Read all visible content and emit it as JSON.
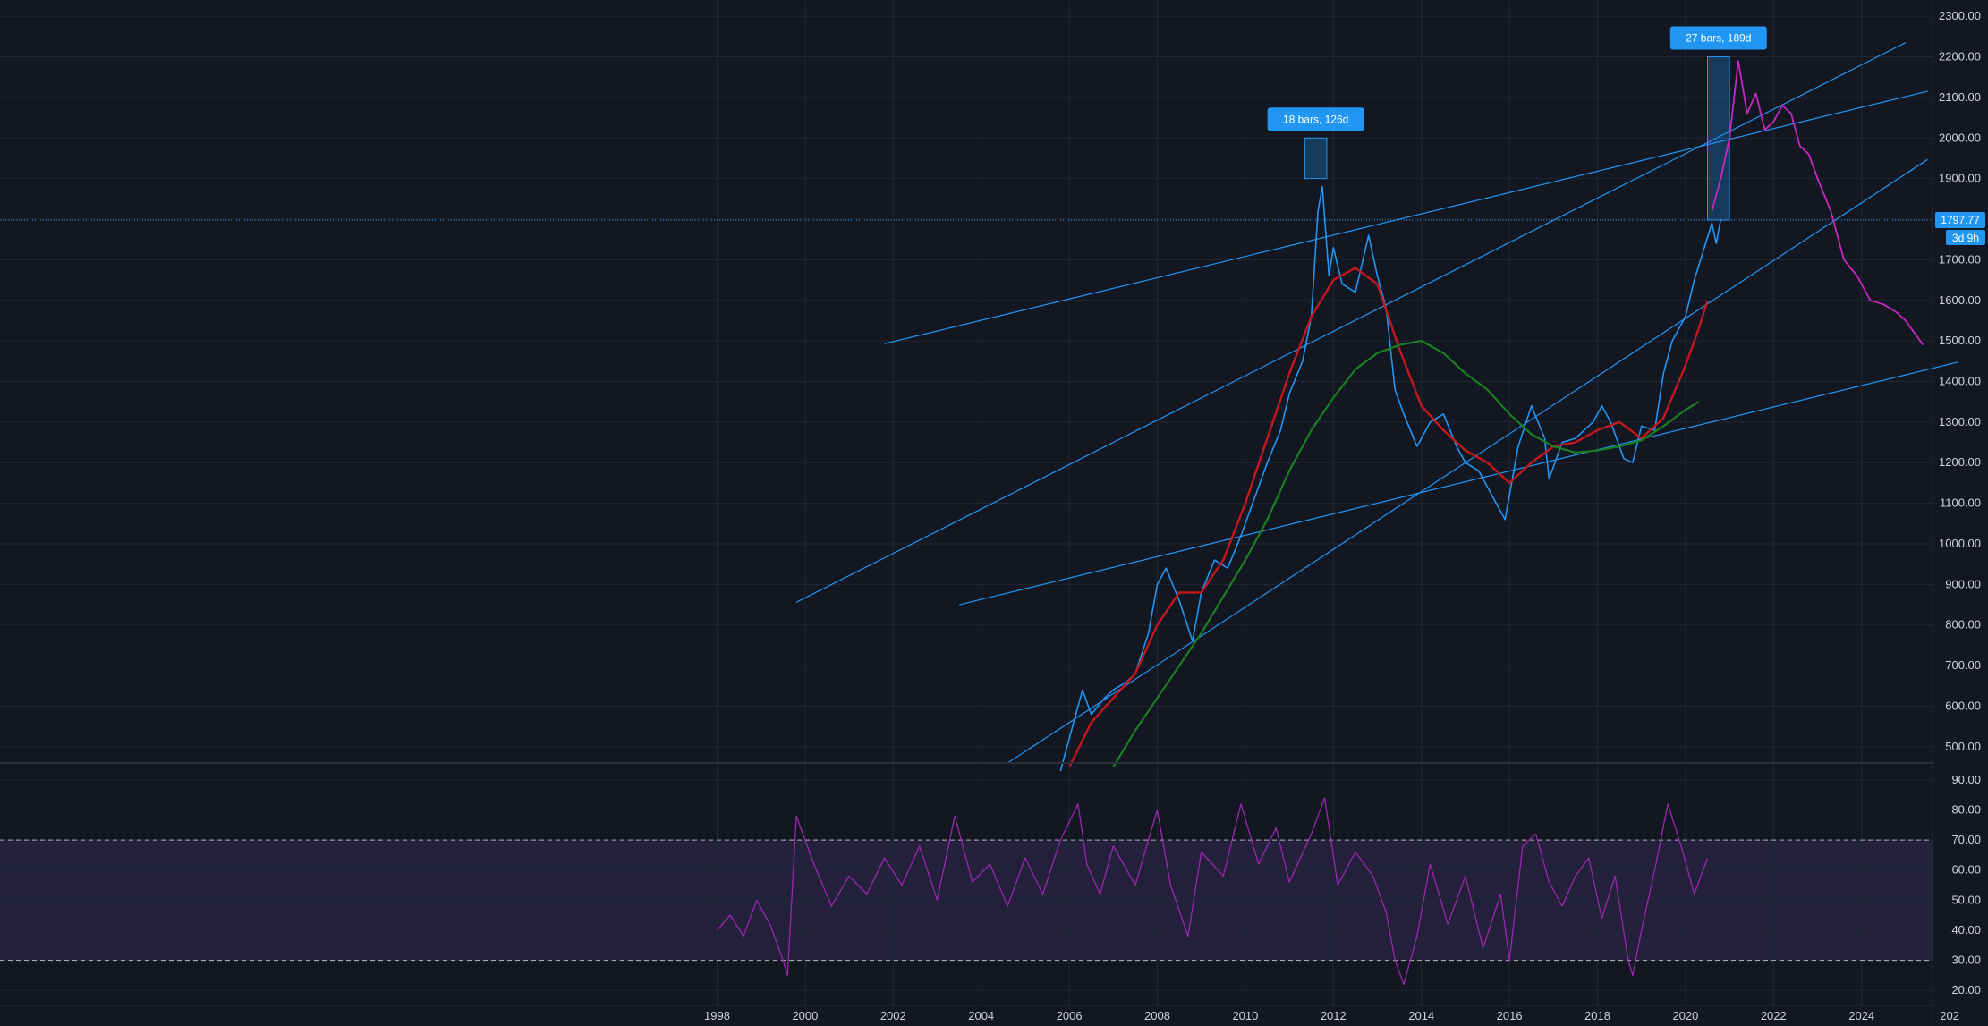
{
  "chart_data": [
    {
      "type": "line",
      "panel": "price",
      "x_axis": {
        "min_year": 1998,
        "max_year": 2026,
        "tick_labels": [
          "1998",
          "2000",
          "2002",
          "2004",
          "2006",
          "2008",
          "2010",
          "2012",
          "2014",
          "2016",
          "2018",
          "2020",
          "2022",
          "2024",
          "202"
        ]
      },
      "y_axis": {
        "min": 460,
        "max": 2340,
        "tick_labels": [
          "500.00",
          "600.00",
          "700.00",
          "800.00",
          "900.00",
          "1000.00",
          "1100.00",
          "1200.00",
          "1300.00",
          "1400.00",
          "1500.00",
          "1600.00",
          "1700.00",
          "1800.00",
          "1900.00",
          "2000.00",
          "2100.00",
          "2200.00",
          "2300.00"
        ],
        "grid": true
      },
      "price_line": {
        "value": 1797.77,
        "label": "1797.77",
        "countdown": "3d 9h",
        "color": "#2196f3"
      },
      "series": [
        {
          "color": "#2196f3",
          "points": [
            [
              2005.8,
              440
            ],
            [
              2006.0,
              520
            ],
            [
              2006.3,
              640
            ],
            [
              2006.5,
              580
            ],
            [
              2006.8,
              620
            ],
            [
              2007.0,
              640
            ],
            [
              2007.3,
              660
            ],
            [
              2007.5,
              680
            ],
            [
              2007.8,
              780
            ],
            [
              2008.0,
              900
            ],
            [
              2008.2,
              940
            ],
            [
              2008.5,
              860
            ],
            [
              2008.8,
              760
            ],
            [
              2009.0,
              880
            ],
            [
              2009.3,
              960
            ],
            [
              2009.6,
              940
            ],
            [
              2009.9,
              1020
            ],
            [
              2010.2,
              1110
            ],
            [
              2010.5,
              1200
            ],
            [
              2010.8,
              1280
            ],
            [
              2011.0,
              1370
            ],
            [
              2011.3,
              1450
            ],
            [
              2011.5,
              1560
            ],
            [
              2011.65,
              1820
            ],
            [
              2011.75,
              1880
            ],
            [
              2011.9,
              1660
            ],
            [
              2012.0,
              1730
            ],
            [
              2012.2,
              1640
            ],
            [
              2012.5,
              1620
            ],
            [
              2012.8,
              1760
            ],
            [
              2013.0,
              1660
            ],
            [
              2013.2,
              1580
            ],
            [
              2013.4,
              1380
            ],
            [
              2013.6,
              1320
            ],
            [
              2013.9,
              1240
            ],
            [
              2014.2,
              1300
            ],
            [
              2014.5,
              1320
            ],
            [
              2014.8,
              1240
            ],
            [
              2015.0,
              1200
            ],
            [
              2015.3,
              1180
            ],
            [
              2015.6,
              1120
            ],
            [
              2015.9,
              1060
            ],
            [
              2016.2,
              1240
            ],
            [
              2016.5,
              1340
            ],
            [
              2016.8,
              1260
            ],
            [
              2016.9,
              1160
            ],
            [
              2017.2,
              1250
            ],
            [
              2017.5,
              1260
            ],
            [
              2017.7,
              1280
            ],
            [
              2017.9,
              1300
            ],
            [
              2018.1,
              1340
            ],
            [
              2018.3,
              1300
            ],
            [
              2018.6,
              1210
            ],
            [
              2018.8,
              1200
            ],
            [
              2019.0,
              1290
            ],
            [
              2019.3,
              1280
            ],
            [
              2019.5,
              1420
            ],
            [
              2019.7,
              1500
            ],
            [
              2020.0,
              1560
            ],
            [
              2020.2,
              1650
            ],
            [
              2020.4,
              1720
            ],
            [
              2020.6,
              1790
            ],
            [
              2020.7,
              1740
            ],
            [
              2020.8,
              1800
            ]
          ]
        },
        {
          "color": "#c2181e",
          "points": [
            [
              2006.0,
              450
            ],
            [
              2006.5,
              560
            ],
            [
              2007.0,
              620
            ],
            [
              2007.5,
              680
            ],
            [
              2008.0,
              800
            ],
            [
              2008.5,
              880
            ],
            [
              2009.0,
              880
            ],
            [
              2009.5,
              960
            ],
            [
              2010.0,
              1100
            ],
            [
              2010.5,
              1260
            ],
            [
              2011.0,
              1420
            ],
            [
              2011.5,
              1560
            ],
            [
              2012.0,
              1650
            ],
            [
              2012.5,
              1680
            ],
            [
              2013.0,
              1640
            ],
            [
              2013.5,
              1480
            ],
            [
              2014.0,
              1340
            ],
            [
              2014.5,
              1280
            ],
            [
              2015.0,
              1230
            ],
            [
              2015.5,
              1200
            ],
            [
              2016.0,
              1150
            ],
            [
              2016.5,
              1200
            ],
            [
              2017.0,
              1240
            ],
            [
              2017.5,
              1250
            ],
            [
              2018.0,
              1280
            ],
            [
              2018.5,
              1300
            ],
            [
              2019.0,
              1260
            ],
            [
              2019.5,
              1310
            ],
            [
              2020.0,
              1440
            ],
            [
              2020.3,
              1530
            ],
            [
              2020.5,
              1600
            ]
          ]
        },
        {
          "color": "#1b7e20",
          "points": [
            [
              2007.0,
              450
            ],
            [
              2007.5,
              540
            ],
            [
              2008.0,
              620
            ],
            [
              2008.5,
              700
            ],
            [
              2009.0,
              780
            ],
            [
              2009.5,
              870
            ],
            [
              2010.0,
              960
            ],
            [
              2010.5,
              1060
            ],
            [
              2011.0,
              1180
            ],
            [
              2011.5,
              1280
            ],
            [
              2012.0,
              1360
            ],
            [
              2012.5,
              1430
            ],
            [
              2013.0,
              1470
            ],
            [
              2013.5,
              1490
            ],
            [
              2014.0,
              1500
            ],
            [
              2014.5,
              1470
            ],
            [
              2015.0,
              1420
            ],
            [
              2015.5,
              1380
            ],
            [
              2016.0,
              1320
            ],
            [
              2016.5,
              1270
            ],
            [
              2017.0,
              1240
            ],
            [
              2017.5,
              1225
            ],
            [
              2018.0,
              1230
            ],
            [
              2018.5,
              1240
            ],
            [
              2019.0,
              1255
            ],
            [
              2019.5,
              1290
            ],
            [
              2020.0,
              1330
            ],
            [
              2020.3,
              1350
            ]
          ]
        },
        {
          "color": "#c429c2",
          "points": [
            [
              2020.6,
              1820
            ],
            [
              2020.8,
              1900
            ],
            [
              2021.0,
              2000
            ],
            [
              2021.2,
              2190
            ],
            [
              2021.4,
              2060
            ],
            [
              2021.6,
              2110
            ],
            [
              2021.8,
              2020
            ],
            [
              2022.0,
              2040
            ],
            [
              2022.2,
              2080
            ],
            [
              2022.4,
              2060
            ],
            [
              2022.6,
              1980
            ],
            [
              2022.8,
              1960
            ],
            [
              2023.0,
              1900
            ],
            [
              2023.3,
              1820
            ],
            [
              2023.6,
              1700
            ],
            [
              2023.9,
              1660
            ],
            [
              2024.2,
              1600
            ],
            [
              2024.5,
              1590
            ],
            [
              2024.8,
              1570
            ],
            [
              2025.0,
              1550
            ],
            [
              2025.4,
              1490
            ]
          ]
        }
      ],
      "trend_lines": [
        [
          [
            2001.8,
            1493
          ],
          [
            2025.5,
            2115
          ]
        ],
        [
          [
            1999.8,
            856
          ],
          [
            2025.0,
            2235
          ]
        ],
        [
          [
            2003.5,
            850
          ],
          [
            2026.2,
            1448
          ]
        ],
        [
          [
            2004.6,
            460
          ],
          [
            2025.5,
            1947
          ]
        ]
      ],
      "measurements": [
        {
          "label": "18 bars, 126d",
          "x_start": 2011.35,
          "x_end": 2011.85,
          "y_low": 1900,
          "y_high": 2000
        },
        {
          "label": "27 bars, 189d",
          "x_start": 2020.5,
          "x_end": 2021.0,
          "y_low": 1797.77,
          "y_high": 2200
        }
      ]
    },
    {
      "type": "line",
      "panel": "oscillator",
      "y_axis": {
        "min": 15,
        "max": 95,
        "tick_labels": [
          "20.00",
          "30.00",
          "40.00",
          "50.00",
          "60.00",
          "70.00",
          "80.00",
          "90.00"
        ]
      },
      "bands": [
        30,
        70
      ],
      "series": [
        {
          "color": "#9c27b0",
          "points": [
            [
              1998.0,
              40
            ],
            [
              1998.3,
              45
            ],
            [
              1998.6,
              38
            ],
            [
              1998.9,
              50
            ],
            [
              1999.2,
              42
            ],
            [
              1999.5,
              30
            ],
            [
              1999.6,
              25
            ],
            [
              1999.8,
              78
            ],
            [
              2000.2,
              62
            ],
            [
              2000.6,
              48
            ],
            [
              2001.0,
              58
            ],
            [
              2001.4,
              52
            ],
            [
              2001.8,
              64
            ],
            [
              2002.2,
              55
            ],
            [
              2002.6,
              68
            ],
            [
              2003.0,
              50
            ],
            [
              2003.4,
              78
            ],
            [
              2003.8,
              56
            ],
            [
              2004.2,
              62
            ],
            [
              2004.6,
              48
            ],
            [
              2005.0,
              64
            ],
            [
              2005.4,
              52
            ],
            [
              2005.8,
              70
            ],
            [
              2006.2,
              82
            ],
            [
              2006.4,
              62
            ],
            [
              2006.7,
              52
            ],
            [
              2007.0,
              68
            ],
            [
              2007.5,
              55
            ],
            [
              2008.0,
              80
            ],
            [
              2008.3,
              55
            ],
            [
              2008.7,
              38
            ],
            [
              2009.0,
              66
            ],
            [
              2009.5,
              58
            ],
            [
              2009.9,
              82
            ],
            [
              2010.3,
              62
            ],
            [
              2010.7,
              74
            ],
            [
              2011.0,
              56
            ],
            [
              2011.5,
              72
            ],
            [
              2011.8,
              84
            ],
            [
              2012.1,
              55
            ],
            [
              2012.5,
              66
            ],
            [
              2012.9,
              58
            ],
            [
              2013.2,
              46
            ],
            [
              2013.4,
              30
            ],
            [
              2013.6,
              22
            ],
            [
              2013.9,
              38
            ],
            [
              2014.2,
              62
            ],
            [
              2014.6,
              42
            ],
            [
              2015.0,
              58
            ],
            [
              2015.4,
              34
            ],
            [
              2015.8,
              52
            ],
            [
              2016.0,
              30
            ],
            [
              2016.3,
              68
            ],
            [
              2016.6,
              72
            ],
            [
              2016.9,
              56
            ],
            [
              2017.2,
              48
            ],
            [
              2017.5,
              58
            ],
            [
              2017.8,
              64
            ],
            [
              2018.1,
              44
            ],
            [
              2018.4,
              58
            ],
            [
              2018.7,
              30
            ],
            [
              2018.8,
              25
            ],
            [
              2019.0,
              40
            ],
            [
              2019.3,
              60
            ],
            [
              2019.6,
              82
            ],
            [
              2019.9,
              68
            ],
            [
              2020.2,
              52
            ],
            [
              2020.5,
              64
            ]
          ]
        }
      ]
    }
  ]
}
